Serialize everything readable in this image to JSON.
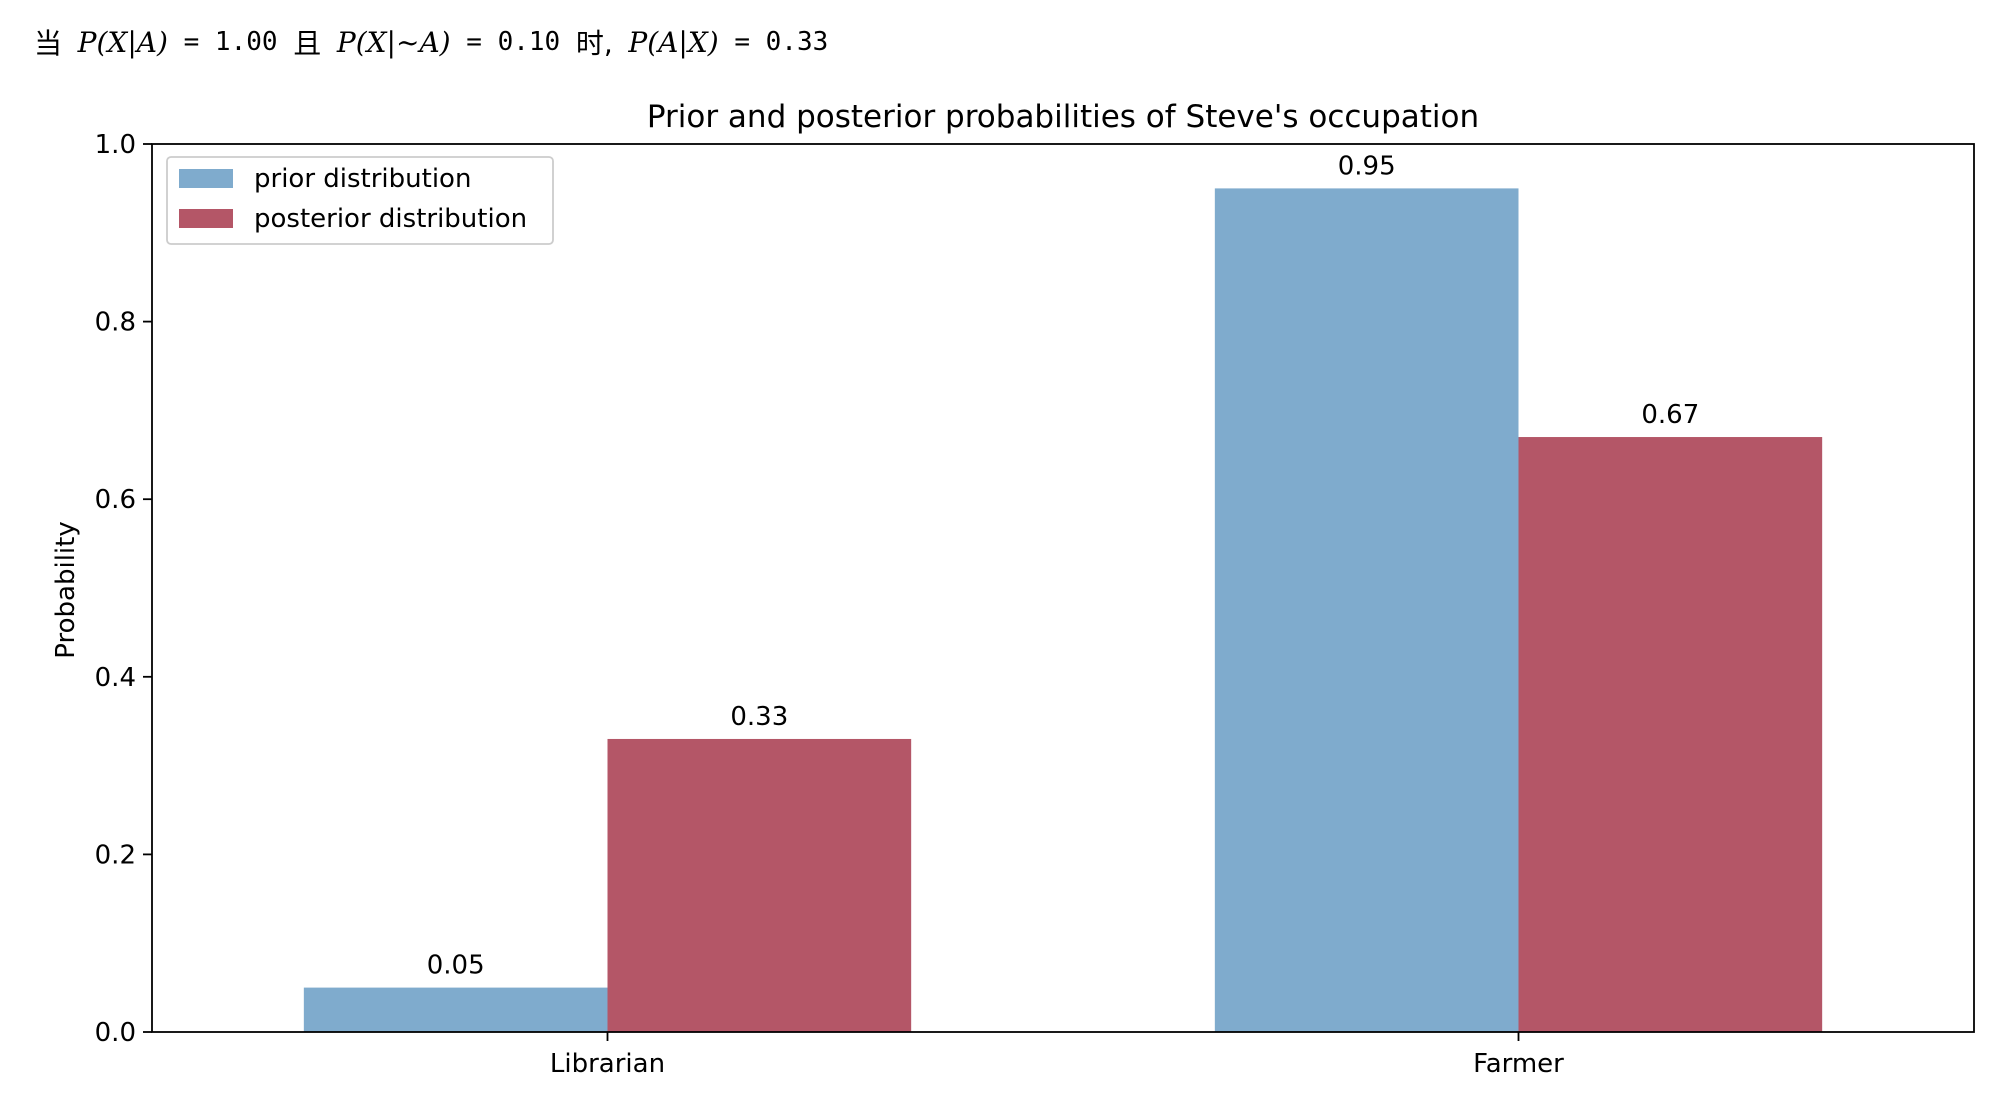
{
  "header": {
    "part1": "当",
    "expr1": "P(X|A)",
    "value1": "= 1.00",
    "conj": "且",
    "expr2": "P(X|~A)",
    "value2": "= 0.10",
    "conj2": "时,",
    "expr3": "P(A|X)",
    "value3": "= 0.33"
  },
  "chart_data": {
    "type": "bar",
    "title": "Prior and posterior probabilities of Steve's occupation",
    "xlabel": "",
    "ylabel": "Probability",
    "categories": [
      "Librarian",
      "Farmer"
    ],
    "series": [
      {
        "name": "prior distribution",
        "values": [
          0.05,
          0.95
        ],
        "labels": [
          "0.05",
          "0.95"
        ],
        "color": "#7fabcd"
      },
      {
        "name": "posterior distribution",
        "values": [
          0.33,
          0.67
        ],
        "labels": [
          "0.33",
          "0.67"
        ],
        "color": "#b45667"
      }
    ],
    "ylim": [
      0,
      1.0
    ],
    "yticks": [
      "0.0",
      "0.2",
      "0.4",
      "0.6",
      "0.8",
      "1.0"
    ],
    "grid": false,
    "legend": "top-left"
  }
}
